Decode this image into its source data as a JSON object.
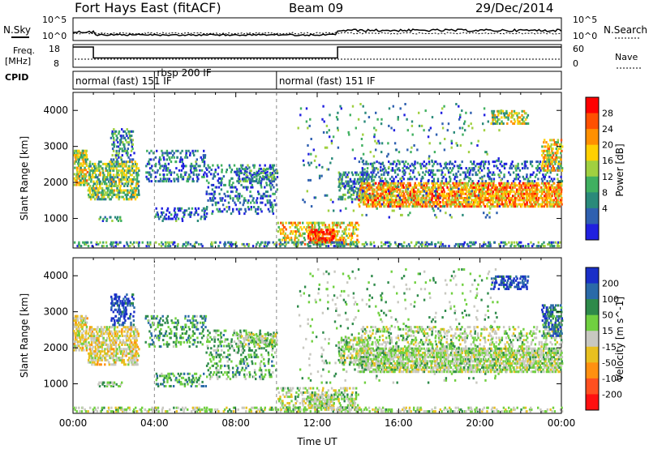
{
  "header": {
    "title": "Fort Hays East (fitACF)",
    "beam": "Beam 09",
    "date": "29/Dec/2014"
  },
  "top_panels": {
    "nsky_label": "N.Sky",
    "nsearch_label": "N.Search",
    "nsky_ticks": [
      "10^5",
      "10^0"
    ],
    "nsearch_ticks": [
      "10^5",
      "10^0"
    ],
    "freq_label_1": "Freq.",
    "freq_label_2": "[MHz]",
    "freq_ticks": [
      "18",
      "8"
    ],
    "nave_label": "Nave",
    "nave_ticks": [
      "60",
      "0"
    ],
    "cpid_label": "CPID",
    "cpid_segments": [
      {
        "label": "normal (fast) 151 IF",
        "start_hour": 0,
        "end_hour": 4
      },
      {
        "label": "rbsp 200 IF",
        "start_hour": 4,
        "end_hour": 10
      },
      {
        "label": "normal (fast) 151 IF",
        "start_hour": 10,
        "end_hour": 24
      }
    ],
    "freq_steps_mhz": [
      [
        0,
        18
      ],
      [
        1,
        10.5
      ],
      [
        13,
        10.5
      ],
      [
        13,
        18
      ],
      [
        24,
        18
      ]
    ]
  },
  "chart_data": [
    {
      "type": "heatmap",
      "name": "power",
      "ylabel": "Slant Range [km]",
      "xlim": [
        0,
        24
      ],
      "ylim": [
        180,
        4500
      ],
      "y_ticks": [
        1000,
        2000,
        3000,
        4000
      ],
      "colorbar_label": "Power [dB]",
      "colorbar_ticks": [
        "28",
        "24",
        "20",
        "16",
        "12",
        "8",
        "4"
      ],
      "colorbar_colors": [
        "#ff0000",
        "#ff5000",
        "#ff9000",
        "#ffd000",
        "#a0d040",
        "#40b060",
        "#2a8a7a",
        "#2f60b0",
        "#2020e0"
      ]
    },
    {
      "type": "heatmap",
      "name": "velocity",
      "ylabel": "Slant Range [km]",
      "xlabel": "Time UT",
      "xlim": [
        0,
        24
      ],
      "ylim": [
        180,
        4500
      ],
      "y_ticks": [
        1000,
        2000,
        3000,
        4000
      ],
      "x_ticks": [
        "00:00",
        "04:00",
        "08:00",
        "12:00",
        "16:00",
        "20:00",
        "00:00"
      ],
      "colorbar_label": "Velocity [m s^-1]",
      "colorbar_ticks": [
        "200",
        "100",
        "50",
        "15",
        "-15",
        "-50",
        "-100",
        "-200"
      ],
      "colorbar_colors": [
        "#1a2fc8",
        "#2a6aa8",
        "#2e8a4a",
        "#70d040",
        "#c8c8c0",
        "#e8c020",
        "#ff9010",
        "#ff5020",
        "#ff1010"
      ]
    }
  ]
}
